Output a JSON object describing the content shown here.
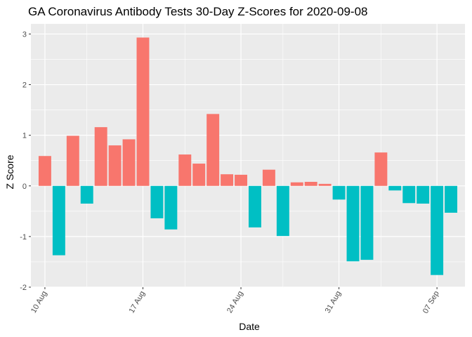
{
  "chart_data": {
    "type": "bar",
    "title": "GA Coronavirus Antibody Tests 30-Day Z-Scores for 2020-09-08",
    "xlabel": "Date",
    "ylabel": "Z Score",
    "x_ticks": [
      {
        "date": "2020-08-10",
        "label": "10 Aug"
      },
      {
        "date": "2020-08-17",
        "label": "17 Aug"
      },
      {
        "date": "2020-08-24",
        "label": "24 Aug"
      },
      {
        "date": "2020-08-31",
        "label": "31 Aug"
      },
      {
        "date": "2020-09-07",
        "label": "07 Sep"
      }
    ],
    "y_ticks": [
      -2,
      -1,
      0,
      1,
      2,
      3
    ],
    "xlim": [
      "2020-08-09",
      "2020-09-09"
    ],
    "ylim": [
      -2.0,
      3.2
    ],
    "grid": true,
    "legend": "none",
    "colors": {
      "positive": "#F8766D",
      "negative": "#00BFC4",
      "panel": "#EBEBEB",
      "gridline": "#FFFFFF"
    },
    "dates": [
      "2020-08-10",
      "2020-08-11",
      "2020-08-12",
      "2020-08-13",
      "2020-08-14",
      "2020-08-15",
      "2020-08-16",
      "2020-08-17",
      "2020-08-18",
      "2020-08-19",
      "2020-08-20",
      "2020-08-21",
      "2020-08-22",
      "2020-08-23",
      "2020-08-24",
      "2020-08-25",
      "2020-08-26",
      "2020-08-27",
      "2020-08-28",
      "2020-08-29",
      "2020-08-30",
      "2020-08-31",
      "2020-09-01",
      "2020-09-02",
      "2020-09-03",
      "2020-09-04",
      "2020-09-05",
      "2020-09-06",
      "2020-09-07",
      "2020-09-08"
    ],
    "values": [
      0.59,
      -1.37,
      0.99,
      -0.35,
      1.16,
      0.8,
      0.92,
      2.93,
      -0.64,
      -0.86,
      0.62,
      0.44,
      1.42,
      0.23,
      0.22,
      -0.82,
      0.32,
      -0.99,
      0.07,
      0.08,
      0.04,
      -0.27,
      -1.49,
      -1.46,
      0.66,
      -0.09,
      -0.34,
      -0.35,
      -1.76,
      -0.53
    ]
  }
}
